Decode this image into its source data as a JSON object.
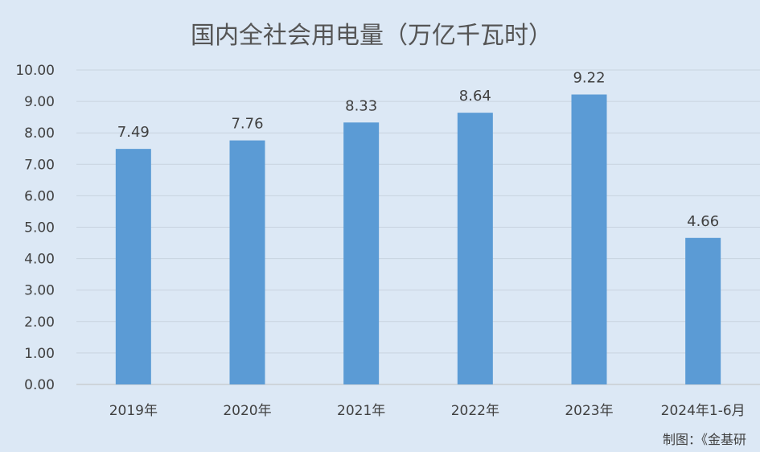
{
  "chart_data": {
    "type": "bar",
    "title": "国内全社会用电量（万亿千瓦时）",
    "categories": [
      "2019年",
      "2020年",
      "2021年",
      "2022年",
      "2023年",
      "2024年1-6月"
    ],
    "values": [
      7.49,
      7.76,
      8.33,
      8.64,
      9.22,
      4.66
    ],
    "value_labels": [
      "7.49",
      "7.76",
      "8.33",
      "8.64",
      "9.22",
      "4.66"
    ],
    "y_ticks": [
      "0.00",
      "1.00",
      "2.00",
      "3.00",
      "4.00",
      "5.00",
      "6.00",
      "7.00",
      "8.00",
      "9.00",
      "10.00"
    ],
    "ylim": [
      0,
      10
    ],
    "grid": true,
    "bar_color": "#5b9bd5",
    "background_color": "#dce8f5",
    "xlabel": "",
    "ylabel": ""
  },
  "credit": "制图：《金基研"
}
